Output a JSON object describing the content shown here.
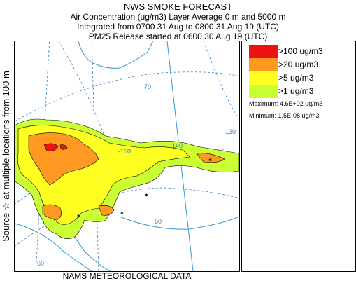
{
  "header": {
    "title": "NWS SMOKE FORECAST",
    "line2": "Air Concentration (ug/m3) Layer Average    0 m and  5000 m",
    "line3": "Integrated from 0700 31 Aug to 0800 31 Aug 19 (UTC)",
    "line4": "PM25 Release started at 0600 30 Aug 19 (UTC)"
  },
  "side_label": "Source ☆  at multiple locations  from  100 m",
  "footer": "NAMS METEOROLOGICAL DATA",
  "legend": {
    "items": [
      {
        "label": ">100 ug/m3",
        "color": "#ee1111"
      },
      {
        "label": ">20 ug/m3",
        "color": "#ff9922"
      },
      {
        "label": ">5 ug/m3",
        "color": "#ffff22"
      },
      {
        "label": ">1 ug/m3",
        "color": "#ccff33"
      }
    ],
    "maximum": "Maximum: 4.6E+02 ug/m3",
    "minimum": "Minimum: 1.5E-08 ug/m3"
  },
  "map": {
    "grid_labels": [
      "70",
      "60",
      "-150",
      "-140",
      "-130",
      "60"
    ],
    "colors": {
      "graticule": "#2a7fd0",
      "coast": "#3399cc",
      "contour": "#000000"
    }
  }
}
